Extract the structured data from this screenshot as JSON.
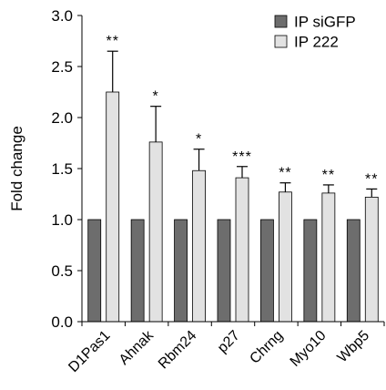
{
  "chart_data": {
    "type": "bar",
    "title": "",
    "xlabel": "",
    "ylabel": "Fold change",
    "ylim": [
      0,
      3.0
    ],
    "yticks": [
      "0.0",
      "0.5",
      "1.0",
      "1.5",
      "2.0",
      "2.5",
      "3.0"
    ],
    "categories": [
      "D1Pas1",
      "Ahnak",
      "Rbm24",
      "p27",
      "Chrng",
      "Myo10",
      "Wbp5"
    ],
    "series": [
      {
        "name": "IP siGFP",
        "color": "#6d6d6d",
        "values": [
          1.0,
          1.0,
          1.0,
          1.0,
          1.0,
          1.0,
          1.0
        ],
        "errors": [
          0,
          0,
          0,
          0,
          0,
          0,
          0
        ]
      },
      {
        "name": "IP 222",
        "color": "#e2e2e2",
        "values": [
          2.25,
          1.76,
          1.48,
          1.41,
          1.27,
          1.26,
          1.22
        ],
        "errors": [
          0.4,
          0.35,
          0.21,
          0.11,
          0.09,
          0.08,
          0.08
        ]
      }
    ],
    "significance": [
      "**",
      "*",
      "*",
      "***",
      "**",
      "**",
      "**"
    ],
    "legend_position": "top-right",
    "grid": false
  }
}
